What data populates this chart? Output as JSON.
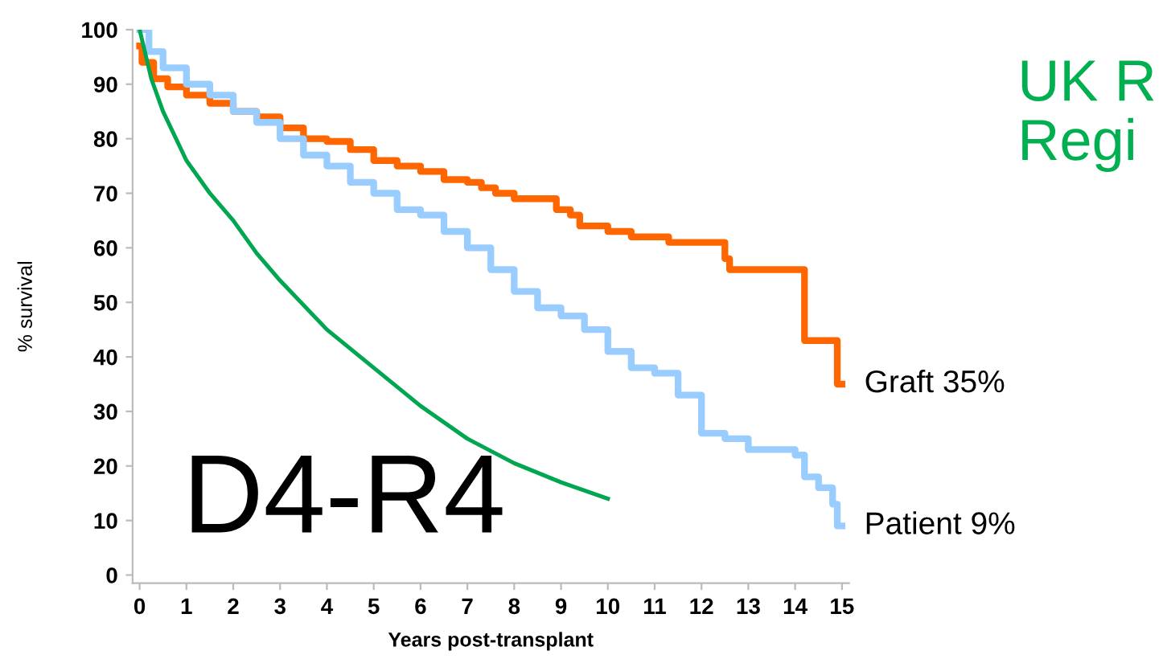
{
  "chart_data": {
    "type": "line",
    "xlabel": "Years post-transplant",
    "ylabel": "% survival",
    "xlim": [
      -0.15,
      15.15
    ],
    "ylim": [
      -1.5,
      100
    ],
    "xticks": [
      0,
      1,
      2,
      3,
      4,
      5,
      6,
      7,
      8,
      9,
      10,
      11,
      12,
      13,
      14,
      15
    ],
    "yticks": [
      0,
      10,
      20,
      30,
      40,
      50,
      60,
      70,
      80,
      90,
      100
    ],
    "grid": false,
    "legend": false,
    "marker": "none",
    "line_style": "solid",
    "series": [
      {
        "name": "Graft 35%",
        "type": "step",
        "color": "#ff6600",
        "x": [
          0,
          0.05,
          0.3,
          0.6,
          1,
          1.5,
          2,
          2.5,
          3,
          3.5,
          4,
          4.5,
          5,
          5.5,
          6,
          6.5,
          7,
          7.3,
          7.6,
          8,
          8.9,
          9.2,
          9.4,
          10,
          10.5,
          11.3,
          12.5,
          12.6,
          14.1,
          14.2,
          14.8,
          14.9,
          15
        ],
        "values": [
          97,
          94,
          91,
          89.5,
          88,
          86.5,
          85,
          84,
          82,
          80,
          79.5,
          78,
          76,
          75,
          74,
          72.5,
          72,
          71,
          70,
          69,
          67,
          66,
          64,
          63,
          62,
          61,
          58,
          56,
          56,
          43,
          43,
          35,
          35
        ]
      },
      {
        "name": "Patient 9%",
        "type": "step",
        "color": "#99ccff",
        "x": [
          0,
          0.2,
          0.5,
          1,
          1.5,
          2,
          2.5,
          3,
          3.5,
          4,
          4.5,
          5,
          5.5,
          6,
          6.5,
          7,
          7.5,
          8,
          8.5,
          9,
          9.5,
          10,
          10.5,
          11,
          11.5,
          12,
          12.5,
          13,
          14,
          14.2,
          14.5,
          14.8,
          14.9,
          15
        ],
        "values": [
          100,
          96,
          93,
          90,
          88,
          85,
          83,
          80,
          77,
          75,
          72,
          70,
          67,
          66,
          63,
          60,
          56,
          52,
          49,
          47.5,
          45,
          41,
          38,
          37,
          33,
          26,
          25,
          23,
          22,
          18,
          16,
          13,
          9,
          9
        ]
      },
      {
        "color": "#00a650",
        "x": [
          0,
          0.25,
          0.5,
          1,
          1.5,
          2,
          2.5,
          3,
          4,
          5,
          6,
          7,
          8,
          9,
          10
        ],
        "values": [
          100,
          91,
          85,
          76,
          70,
          65,
          59,
          54,
          45,
          38,
          31,
          25,
          20.5,
          17,
          14
        ]
      }
    ],
    "annotations": [
      "D4-R4",
      "UK R",
      "Regi"
    ]
  }
}
